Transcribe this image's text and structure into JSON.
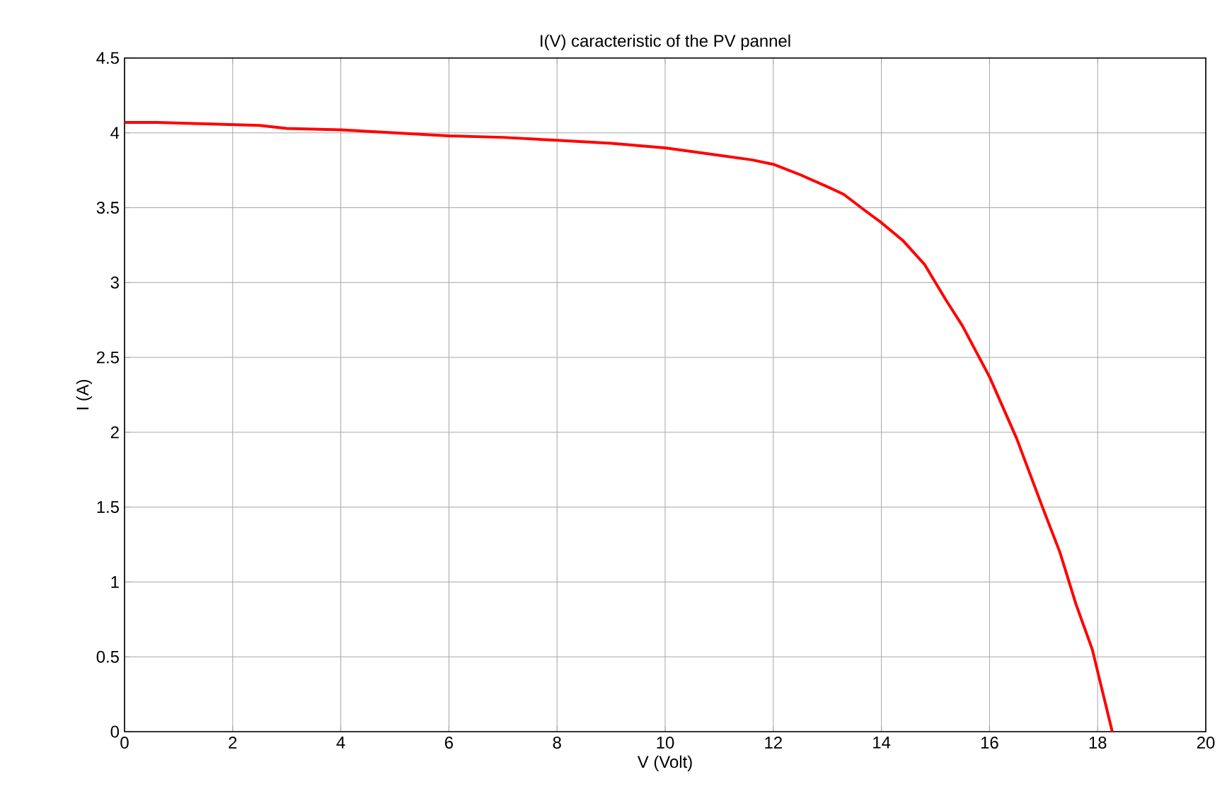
{
  "chart_data": {
    "type": "line",
    "title": "I(V) caracteristic of the PV pannel",
    "xlabel": "V (Volt)",
    "ylabel": "I (A)",
    "xlim": [
      0,
      20
    ],
    "ylim": [
      0,
      4.5
    ],
    "xticks": [
      0,
      2,
      4,
      6,
      8,
      10,
      12,
      14,
      16,
      18,
      20
    ],
    "yticks": [
      0,
      0.5,
      1,
      1.5,
      2,
      2.5,
      3,
      3.5,
      4,
      4.5
    ],
    "grid": true,
    "series": [
      {
        "color": "#ff0000",
        "line_style": "solid",
        "x": [
          0,
          0.6,
          1.5,
          2.5,
          3,
          4,
          5,
          6,
          7,
          8,
          9,
          10,
          11,
          11.6,
          12,
          12.5,
          13,
          13.3,
          13.7,
          14,
          14.4,
          14.8,
          15.2,
          15.5,
          16,
          16.5,
          17,
          17.3,
          17.6,
          17.9,
          18.27
        ],
        "values": [
          4.07,
          4.07,
          4.06,
          4.05,
          4.03,
          4.02,
          4.0,
          3.98,
          3.97,
          3.95,
          3.93,
          3.9,
          3.85,
          3.82,
          3.79,
          3.72,
          3.64,
          3.59,
          3.48,
          3.4,
          3.28,
          3.12,
          2.88,
          2.71,
          2.37,
          1.96,
          1.48,
          1.2,
          0.85,
          0.55,
          0
        ]
      }
    ]
  }
}
